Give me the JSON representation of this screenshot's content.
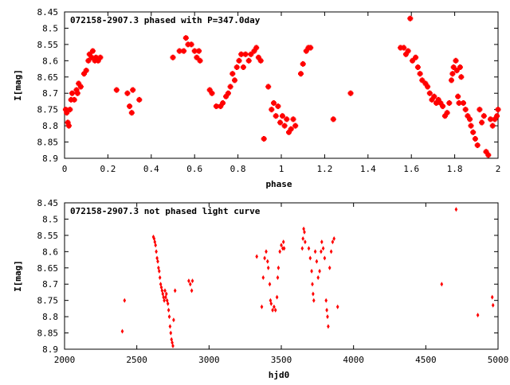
{
  "colors": {
    "marker": "#ff0000",
    "axis": "#000000",
    "background": "#ffffff"
  },
  "chart_data": [
    {
      "type": "scatter",
      "title": "072158-2907.3 phased with P=347.0day",
      "xlabel": "phase",
      "ylabel": "I[mag]",
      "xlim": [
        0,
        2
      ],
      "ylim": [
        8.45,
        8.9
      ],
      "y_inverted": true,
      "grid": false,
      "xticks": [
        "0",
        "0.2",
        "0.4",
        "0.6",
        "0.8",
        "1",
        "1.2",
        "1.4",
        "1.6",
        "1.8",
        "2"
      ],
      "yticks": [
        "8.45",
        "8.5",
        "8.55",
        "8.6",
        "8.65",
        "8.7",
        "8.75",
        "8.8",
        "8.85",
        "8.9"
      ],
      "points": [
        [
          0.005,
          8.75
        ],
        [
          0.01,
          8.76
        ],
        [
          0.015,
          8.79
        ],
        [
          0.02,
          8.8
        ],
        [
          0.025,
          8.75
        ],
        [
          0.03,
          8.72
        ],
        [
          0.035,
          8.7
        ],
        [
          0.045,
          8.72
        ],
        [
          0.055,
          8.69
        ],
        [
          0.06,
          8.7
        ],
        [
          0.065,
          8.67
        ],
        [
          0.075,
          8.68
        ],
        [
          0.09,
          8.64
        ],
        [
          0.1,
          8.63
        ],
        [
          0.11,
          8.6
        ],
        [
          0.115,
          8.58
        ],
        [
          0.125,
          8.59
        ],
        [
          0.13,
          8.57
        ],
        [
          0.14,
          8.6
        ],
        [
          0.145,
          8.59
        ],
        [
          0.155,
          8.6
        ],
        [
          0.165,
          8.59
        ],
        [
          0.24,
          8.69
        ],
        [
          0.29,
          8.7
        ],
        [
          0.3,
          8.74
        ],
        [
          0.31,
          8.76
        ],
        [
          0.315,
          8.69
        ],
        [
          0.345,
          8.72
        ],
        [
          0.5,
          8.59
        ],
        [
          0.53,
          8.57
        ],
        [
          0.55,
          8.57
        ],
        [
          0.56,
          8.53
        ],
        [
          0.57,
          8.55
        ],
        [
          0.585,
          8.55
        ],
        [
          0.6,
          8.57
        ],
        [
          0.61,
          8.59
        ],
        [
          0.62,
          8.57
        ],
        [
          0.625,
          8.6
        ],
        [
          0.67,
          8.69
        ],
        [
          0.68,
          8.7
        ],
        [
          0.7,
          8.74
        ],
        [
          0.72,
          8.74
        ],
        [
          0.73,
          8.73
        ],
        [
          0.745,
          8.71
        ],
        [
          0.755,
          8.7
        ],
        [
          0.765,
          8.68
        ],
        [
          0.775,
          8.64
        ],
        [
          0.785,
          8.66
        ],
        [
          0.795,
          8.62
        ],
        [
          0.805,
          8.6
        ],
        [
          0.815,
          8.58
        ],
        [
          0.825,
          8.62
        ],
        [
          0.835,
          8.58
        ],
        [
          0.85,
          8.6
        ],
        [
          0.86,
          8.58
        ],
        [
          0.875,
          8.57
        ],
        [
          0.885,
          8.56
        ],
        [
          0.895,
          8.59
        ],
        [
          0.905,
          8.6
        ],
        [
          0.92,
          8.84
        ],
        [
          0.94,
          8.68
        ],
        [
          0.955,
          8.75
        ],
        [
          0.965,
          8.73
        ],
        [
          0.975,
          8.77
        ],
        [
          0.985,
          8.74
        ],
        [
          0.995,
          8.79
        ],
        [
          1.005,
          8.77
        ],
        [
          1.015,
          8.8
        ],
        [
          1.025,
          8.78
        ],
        [
          1.035,
          8.82
        ],
        [
          1.045,
          8.81
        ],
        [
          1.055,
          8.78
        ],
        [
          1.065,
          8.8
        ],
        [
          1.09,
          8.64
        ],
        [
          1.1,
          8.61
        ],
        [
          1.115,
          8.57
        ],
        [
          1.125,
          8.56
        ],
        [
          1.135,
          8.56
        ],
        [
          1.24,
          8.78
        ],
        [
          1.32,
          8.7
        ],
        [
          1.55,
          8.56
        ],
        [
          1.565,
          8.56
        ],
        [
          1.575,
          8.58
        ],
        [
          1.585,
          8.57
        ],
        [
          1.595,
          8.47
        ],
        [
          1.605,
          8.6
        ],
        [
          1.62,
          8.59
        ],
        [
          1.63,
          8.62
        ],
        [
          1.64,
          8.64
        ],
        [
          1.65,
          8.66
        ],
        [
          1.665,
          8.67
        ],
        [
          1.675,
          8.68
        ],
        [
          1.685,
          8.7
        ],
        [
          1.695,
          8.72
        ],
        [
          1.705,
          8.71
        ],
        [
          1.715,
          8.73
        ],
        [
          1.725,
          8.72
        ],
        [
          1.735,
          8.73
        ],
        [
          1.745,
          8.74
        ],
        [
          1.755,
          8.77
        ],
        [
          1.765,
          8.76
        ],
        [
          1.775,
          8.73
        ],
        [
          1.785,
          8.66
        ],
        [
          1.79,
          8.64
        ],
        [
          1.795,
          8.62
        ],
        [
          1.805,
          8.6
        ],
        [
          1.81,
          8.63
        ],
        [
          1.815,
          8.71
        ],
        [
          1.82,
          8.73
        ],
        [
          1.825,
          8.62
        ],
        [
          1.83,
          8.65
        ],
        [
          1.84,
          8.73
        ],
        [
          1.85,
          8.75
        ],
        [
          1.86,
          8.77
        ],
        [
          1.87,
          8.78
        ],
        [
          1.875,
          8.8
        ],
        [
          1.885,
          8.82
        ],
        [
          1.895,
          8.84
        ],
        [
          1.905,
          8.86
        ],
        [
          1.915,
          8.75
        ],
        [
          1.925,
          8.79
        ],
        [
          1.935,
          8.77
        ],
        [
          1.945,
          8.88
        ],
        [
          1.955,
          8.89
        ],
        [
          1.965,
          8.78
        ],
        [
          1.975,
          8.8
        ],
        [
          1.985,
          8.78
        ],
        [
          1.995,
          8.77
        ],
        [
          2.0,
          8.75
        ]
      ]
    },
    {
      "type": "scatter",
      "title": "072158-2907.3 not phased light curve",
      "xlabel": "hjd0",
      "ylabel": "I[mag]",
      "xlim": [
        2000,
        5000
      ],
      "ylim": [
        8.45,
        8.9
      ],
      "y_inverted": true,
      "grid": false,
      "xticks": [
        "2000",
        "2500",
        "3000",
        "3500",
        "4000",
        "4500",
        "5000"
      ],
      "yticks": [
        "8.45",
        "8.5",
        "8.55",
        "8.6",
        "8.65",
        "8.7",
        "8.75",
        "8.8",
        "8.85",
        "8.9"
      ],
      "points": [
        [
          2400,
          8.845
        ],
        [
          2415,
          8.75
        ],
        [
          2615,
          8.555
        ],
        [
          2620,
          8.56
        ],
        [
          2625,
          8.57
        ],
        [
          2630,
          8.58
        ],
        [
          2635,
          8.6
        ],
        [
          2640,
          8.62
        ],
        [
          2645,
          8.63
        ],
        [
          2650,
          8.65
        ],
        [
          2655,
          8.66
        ],
        [
          2660,
          8.68
        ],
        [
          2665,
          8.7
        ],
        [
          2670,
          8.71
        ],
        [
          2675,
          8.72
        ],
        [
          2680,
          8.73
        ],
        [
          2685,
          8.74
        ],
        [
          2690,
          8.75
        ],
        [
          2695,
          8.72
        ],
        [
          2700,
          8.74
        ],
        [
          2705,
          8.73
        ],
        [
          2710,
          8.75
        ],
        [
          2715,
          8.76
        ],
        [
          2720,
          8.78
        ],
        [
          2725,
          8.8
        ],
        [
          2730,
          8.83
        ],
        [
          2735,
          8.85
        ],
        [
          2740,
          8.87
        ],
        [
          2745,
          8.88
        ],
        [
          2750,
          8.89
        ],
        [
          2755,
          8.81
        ],
        [
          2765,
          8.72
        ],
        [
          2860,
          8.69
        ],
        [
          2870,
          8.7
        ],
        [
          2880,
          8.72
        ],
        [
          2885,
          8.69
        ],
        [
          3330,
          8.615
        ],
        [
          3365,
          8.77
        ],
        [
          3375,
          8.68
        ],
        [
          3385,
          8.62
        ],
        [
          3395,
          8.6
        ],
        [
          3405,
          8.63
        ],
        [
          3410,
          8.65
        ],
        [
          3420,
          8.7
        ],
        [
          3425,
          8.75
        ],
        [
          3430,
          8.76
        ],
        [
          3440,
          8.78
        ],
        [
          3450,
          8.77
        ],
        [
          3460,
          8.78
        ],
        [
          3470,
          8.74
        ],
        [
          3475,
          8.68
        ],
        [
          3480,
          8.65
        ],
        [
          3490,
          8.6
        ],
        [
          3500,
          8.58
        ],
        [
          3510,
          8.59
        ],
        [
          3515,
          8.57
        ],
        [
          3520,
          8.59
        ],
        [
          3645,
          8.59
        ],
        [
          3650,
          8.56
        ],
        [
          3655,
          8.53
        ],
        [
          3660,
          8.54
        ],
        [
          3665,
          8.57
        ],
        [
          3690,
          8.59
        ],
        [
          3700,
          8.62
        ],
        [
          3710,
          8.66
        ],
        [
          3715,
          8.7
        ],
        [
          3720,
          8.73
        ],
        [
          3725,
          8.75
        ],
        [
          3735,
          8.6
        ],
        [
          3745,
          8.63
        ],
        [
          3755,
          8.68
        ],
        [
          3765,
          8.66
        ],
        [
          3775,
          8.6
        ],
        [
          3780,
          8.57
        ],
        [
          3790,
          8.59
        ],
        [
          3800,
          8.62
        ],
        [
          3810,
          8.75
        ],
        [
          3815,
          8.78
        ],
        [
          3820,
          8.8
        ],
        [
          3825,
          8.83
        ],
        [
          3835,
          8.65
        ],
        [
          3845,
          8.6
        ],
        [
          3855,
          8.57
        ],
        [
          3865,
          8.56
        ],
        [
          3890,
          8.77
        ],
        [
          4610,
          8.7
        ],
        [
          4710,
          8.47
        ],
        [
          4860,
          8.795
        ],
        [
          4960,
          8.74
        ],
        [
          4965,
          8.765
        ]
      ]
    }
  ]
}
